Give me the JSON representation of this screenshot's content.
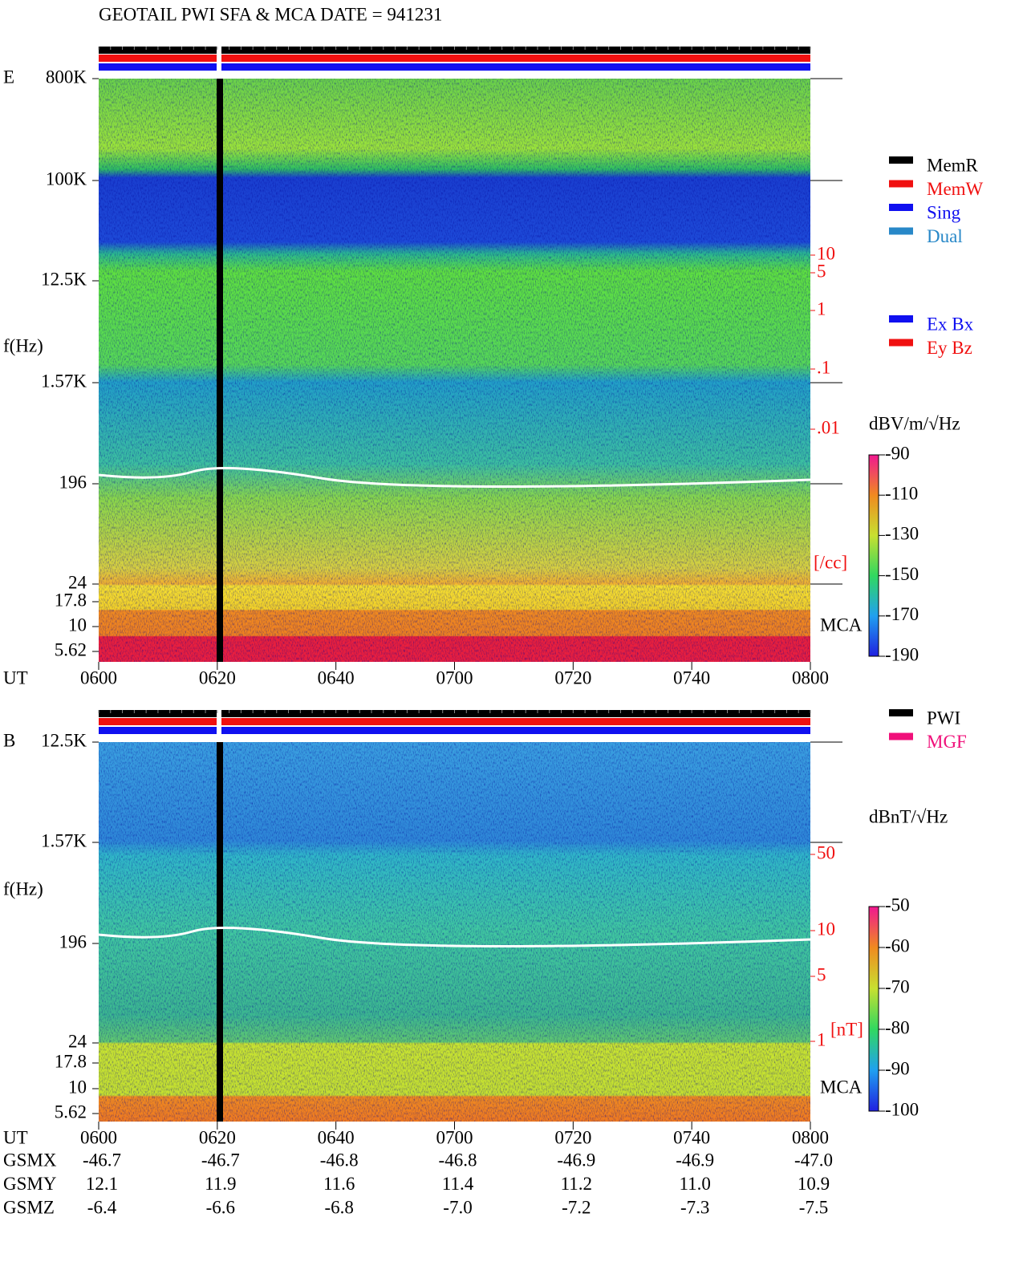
{
  "header": {
    "title": "GEOTAIL  PWI SFA & MCA   DATE = 941231"
  },
  "panel_e": {
    "label": "E",
    "ylabel": "f(Hz)",
    "yticks": [
      "800K",
      "100K",
      "12.5K",
      "1.57K",
      "196",
      "24",
      "17.8",
      "10",
      "5.62"
    ],
    "right_ticks": [
      "10",
      "5",
      "1",
      ".1",
      ".01"
    ],
    "right_unit": "[/cc]",
    "mca": "MCA",
    "xlabel": "UT",
    "xticks": [
      "0600",
      "0620",
      "0640",
      "0700",
      "0720",
      "0740",
      "0800"
    ],
    "legend": [
      "MemR",
      "MemW",
      "Sing",
      "Dual"
    ],
    "legend2": [
      "Ex Bx",
      "Ey Bz"
    ],
    "colorbar": {
      "unit": "dBV/m/√Hz",
      "ticks": [
        "-90",
        "-110",
        "-130",
        "-150",
        "-170",
        "-190"
      ]
    }
  },
  "panel_b": {
    "label": "B",
    "ylabel": "f(Hz)",
    "yticks": [
      "12.5K",
      "1.57K",
      "196",
      "24",
      "17.8",
      "10",
      "5.62"
    ],
    "right_ticks": [
      "50",
      "10",
      "5",
      "1"
    ],
    "right_unit": "[nT]",
    "mca": "MCA",
    "xlabel": "UT",
    "xticks": [
      "0600",
      "0620",
      "0640",
      "0700",
      "0720",
      "0740",
      "0800"
    ],
    "legend": [
      "PWI",
      "MGF"
    ],
    "colorbar": {
      "unit": "dBnT/√Hz",
      "ticks": [
        "-50",
        "-60",
        "-70",
        "-80",
        "-90",
        "-100"
      ]
    }
  },
  "orbit": {
    "labels": [
      "GSMX",
      "GSMY",
      "GSMZ"
    ],
    "rows": [
      [
        "-46.7",
        "-46.7",
        "-46.8",
        "-46.8",
        "-46.9",
        "-46.9",
        "-47.0"
      ],
      [
        "12.1",
        "11.9",
        "11.6",
        "11.4",
        "11.2",
        "11.0",
        "10.9"
      ],
      [
        "-6.4",
        "-6.6",
        "-6.8",
        "-7.0",
        "-7.2",
        "-7.3",
        "-7.5"
      ]
    ]
  }
}
